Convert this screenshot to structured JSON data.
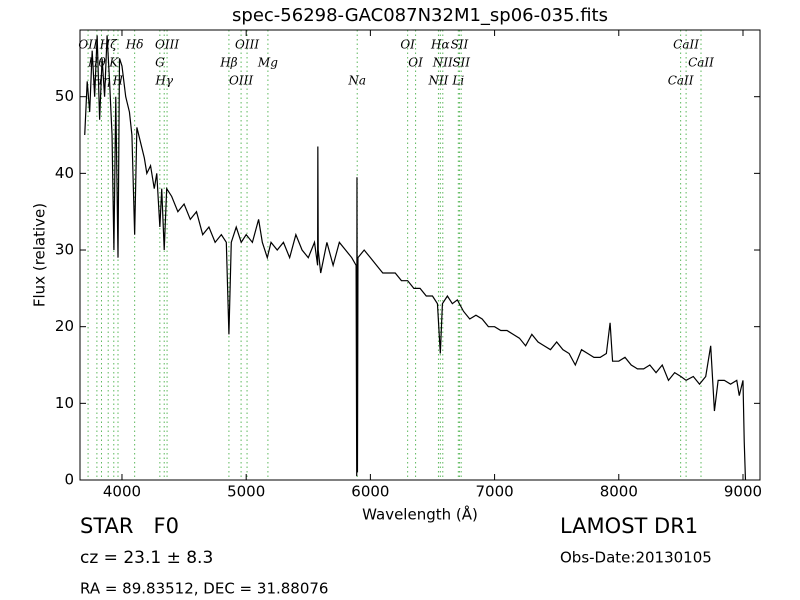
{
  "chart_data": {
    "type": "line",
    "title": "spec-56298-GAC087N32M1_sp06-035.fits",
    "x_label": "Wavelength (Å)",
    "y_label": "Flux (relative)",
    "xlim": [
      3662,
      9137
    ],
    "ylim": [
      0,
      58.7
    ],
    "xticks": [
      4000,
      5000,
      6000,
      7000,
      8000,
      9000
    ],
    "yticks": [
      0,
      10,
      20,
      30,
      40,
      50
    ],
    "grid": false,
    "color": "#000000",
    "line_color": "#5cb85c",
    "x": [
      3700,
      3720,
      3740,
      3760,
      3780,
      3800,
      3820,
      3840,
      3860,
      3880,
      3900,
      3920,
      3935,
      3950,
      3968,
      3980,
      4000,
      4030,
      4060,
      4080,
      4102,
      4120,
      4150,
      4180,
      4200,
      4230,
      4260,
      4280,
      4305,
      4320,
      4340,
      4360,
      4400,
      4450,
      4500,
      4550,
      4600,
      4650,
      4700,
      4750,
      4800,
      4840,
      4861,
      4880,
      4920,
      4960,
      5000,
      5050,
      5100,
      5130,
      5170,
      5200,
      5250,
      5300,
      5350,
      5400,
      5450,
      5500,
      5550,
      5575,
      5577,
      5580,
      5600,
      5650,
      5700,
      5750,
      5800,
      5850,
      5885,
      5890,
      5892,
      5896,
      5900,
      5950,
      6000,
      6050,
      6100,
      6150,
      6200,
      6250,
      6300,
      6350,
      6400,
      6450,
      6500,
      6540,
      6563,
      6580,
      6620,
      6660,
      6700,
      6750,
      6800,
      6850,
      6900,
      6950,
      7000,
      7050,
      7100,
      7150,
      7200,
      7250,
      7300,
      7350,
      7400,
      7450,
      7500,
      7550,
      7600,
      7650,
      7700,
      7750,
      7800,
      7850,
      7900,
      7930,
      7950,
      8000,
      8050,
      8100,
      8150,
      8200,
      8250,
      8300,
      8350,
      8400,
      8450,
      8500,
      8542,
      8600,
      8650,
      8700,
      8740,
      8770,
      8800,
      8850,
      8900,
      8950,
      8970,
      9000,
      9010,
      9020
    ],
    "values": [
      45,
      52,
      48,
      56,
      50,
      58,
      47,
      55,
      50,
      58,
      52,
      45,
      30,
      50,
      29,
      55,
      54,
      50,
      48,
      45,
      32,
      46,
      44,
      42,
      40,
      41,
      38,
      40,
      33,
      38,
      30,
      38,
      37,
      35,
      36,
      34,
      35,
      32,
      33,
      31,
      32,
      31,
      19,
      31,
      33,
      31,
      32,
      31,
      34,
      31,
      29,
      31,
      30,
      31,
      29,
      32,
      30,
      29,
      31,
      28,
      43.5,
      30,
      27,
      31,
      28,
      31,
      30,
      29,
      28,
      0.5,
      39.5,
      1,
      29,
      30,
      29,
      28,
      27,
      27,
      27,
      26,
      26,
      25,
      25,
      24,
      24,
      23,
      16.5,
      23,
      24,
      23,
      23.5,
      22,
      21,
      21.5,
      21,
      20,
      20,
      19.5,
      19.5,
      19,
      18.5,
      17.5,
      19,
      18,
      17.5,
      17,
      18,
      17,
      16.5,
      15,
      17,
      16.5,
      16,
      16,
      16.5,
      20.5,
      15.5,
      15.5,
      16,
      15,
      14.5,
      14.5,
      15,
      14,
      15,
      13,
      14,
      13.5,
      13,
      13.5,
      12.5,
      13.5,
      17.5,
      9,
      13,
      13,
      12.5,
      13,
      11,
      13,
      5,
      0
    ],
    "lines": [
      {
        "label": "OII",
        "x": 3727
      },
      {
        "label": "Hθ",
        "x": 3798
      },
      {
        "label": "Hη",
        "x": 3835
      },
      {
        "label": "Hζ",
        "x": 3889
      },
      {
        "label": "K",
        "x": 3934
      },
      {
        "label": "H",
        "x": 3968
      },
      {
        "label": "Hδ",
        "x": 4102
      },
      {
        "label": "G",
        "x": 4305
      },
      {
        "label": "Hγ",
        "x": 4340
      },
      {
        "label": "OIII",
        "x": 4363
      },
      {
        "label": "Hβ",
        "x": 4861
      },
      {
        "label": "OIII",
        "x": 4959
      },
      {
        "label": "OIII",
        "x": 5007
      },
      {
        "label": "Mg",
        "x": 5175
      },
      {
        "label": "Na",
        "x": 5894
      },
      {
        "label": "OI",
        "x": 6300
      },
      {
        "label": "OI",
        "x": 6364
      },
      {
        "label": "NII",
        "x": 6548
      },
      {
        "label": "Hα",
        "x": 6563
      },
      {
        "label": "NII",
        "x": 6583
      },
      {
        "label": "Li",
        "x": 6708
      },
      {
        "label": "SII",
        "x": 6717
      },
      {
        "label": "SII",
        "x": 6731
      },
      {
        "label": "CaII",
        "x": 8498
      },
      {
        "label": "CaII",
        "x": 8542
      },
      {
        "label": "CaII",
        "x": 8662
      }
    ]
  },
  "footer": {
    "class": "STAR   F0",
    "cz": "cz = 23.1 ± 8.3",
    "coords": "RA = 89.83512, DEC = 31.88076",
    "survey": "LAMOST DR1",
    "obs_date": "Obs-Date:20130105"
  }
}
